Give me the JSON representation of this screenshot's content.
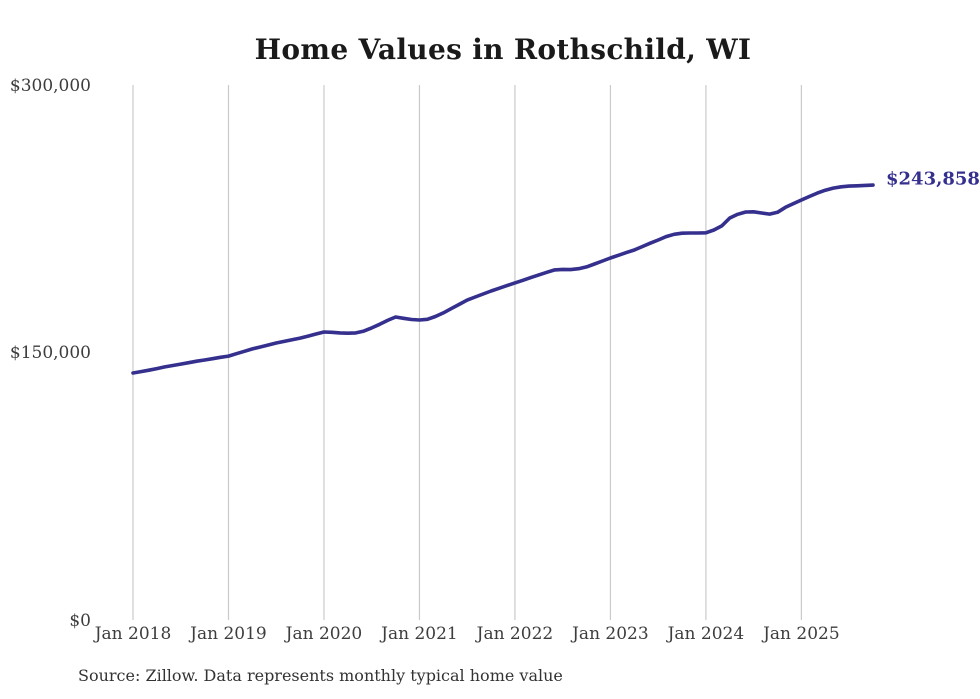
{
  "chart_data": {
    "type": "line",
    "title": "Home Values in Rothschild, WI",
    "series_name": "Monthly typical home value",
    "x_start": "Jan 2018",
    "x_end": "Oct 2025",
    "x_ticks": [
      "Jan 2018",
      "Jan 2019",
      "Jan 2020",
      "Jan 2021",
      "Jan 2022",
      "Jan 2023",
      "Jan 2024",
      "Jan 2025"
    ],
    "months_per_tick": 12,
    "y_ticks": [
      "$300,000",
      "$150,000",
      "$0"
    ],
    "ylim": [
      0,
      300000
    ],
    "grid": "vertical-only",
    "legend": "none",
    "line_color": "#35308d",
    "grid_color": "#cacaca",
    "end_label": "$243,858",
    "end_value": 243858,
    "values": [
      138500,
      139300,
      140100,
      141000,
      141900,
      142700,
      143500,
      144300,
      145100,
      145800,
      146500,
      147300,
      148000,
      149300,
      150700,
      152000,
      153100,
      154200,
      155300,
      156200,
      157200,
      158100,
      159200,
      160400,
      161500,
      161300,
      161000,
      160800,
      161000,
      162000,
      163800,
      165800,
      168000,
      169900,
      169200,
      168500,
      168200,
      168600,
      170200,
      172200,
      174600,
      177000,
      179400,
      181100,
      182800,
      184500,
      186000,
      187500,
      189000,
      190500,
      192000,
      193500,
      195000,
      196300,
      196600,
      196500,
      197000,
      198000,
      199600,
      201300,
      203000,
      204500,
      206000,
      207500,
      209400,
      211300,
      213100,
      215000,
      216300,
      216900,
      217000,
      217000,
      217100,
      218700,
      221000,
      225400,
      227500,
      228800,
      228900,
      228200,
      227600,
      228600,
      231400,
      233500,
      235500,
      237500,
      239400,
      241000,
      242200,
      242900,
      243300,
      243500,
      243700,
      243858
    ]
  },
  "footer": {
    "source": "Source: Zillow. Data represents monthly typical home value"
  }
}
